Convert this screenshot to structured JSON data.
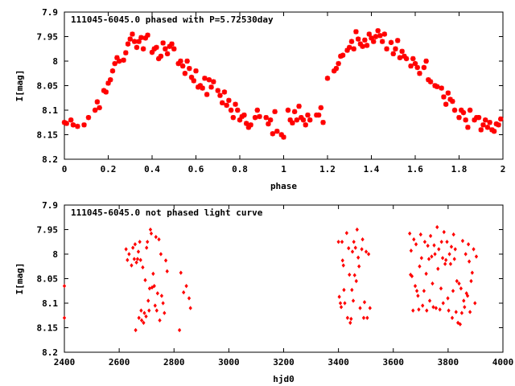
{
  "chart_data": [
    {
      "type": "scatter",
      "title": "111045-6045.0 phased with P=5.72530day",
      "xlabel": "phase",
      "ylabel": "I[mag]",
      "xlim": [
        0,
        2
      ],
      "ylim": [
        8.2,
        7.9
      ],
      "y_inverted": true,
      "xticks": [
        "0",
        "0.2",
        "0.4",
        "0.6",
        "0.8",
        "1",
        "1.2",
        "1.4",
        "1.6",
        "1.8",
        "2"
      ],
      "yticks": [
        "7.9",
        "7.95",
        "8",
        "8.05",
        "8.1",
        "8.15",
        "8.2"
      ],
      "marker": "star",
      "color": "#ff0000",
      "points": [
        [
          0.0,
          8.125
        ],
        [
          0.01,
          8.127
        ],
        [
          0.03,
          8.12
        ],
        [
          0.04,
          8.13
        ],
        [
          0.06,
          8.133
        ],
        [
          0.09,
          8.13
        ],
        [
          0.11,
          8.115
        ],
        [
          0.14,
          8.1
        ],
        [
          0.15,
          8.083
        ],
        [
          0.16,
          8.095
        ],
        [
          0.18,
          8.06
        ],
        [
          0.19,
          8.063
        ],
        [
          0.2,
          8.045
        ],
        [
          0.21,
          8.038
        ],
        [
          0.22,
          8.02
        ],
        [
          0.23,
          8.005
        ],
        [
          0.24,
          7.993
        ],
        [
          0.25,
          8.0
        ],
        [
          0.27,
          7.998
        ],
        [
          0.28,
          7.983
        ],
        [
          0.29,
          7.965
        ],
        [
          0.3,
          7.955
        ],
        [
          0.31,
          7.945
        ],
        [
          0.32,
          7.96
        ],
        [
          0.33,
          7.972
        ],
        [
          0.34,
          7.96
        ],
        [
          0.35,
          7.952
        ],
        [
          0.36,
          7.975
        ],
        [
          0.37,
          7.953
        ],
        [
          0.38,
          7.947
        ],
        [
          0.4,
          7.982
        ],
        [
          0.41,
          7.975
        ],
        [
          0.42,
          7.972
        ],
        [
          0.43,
          7.995
        ],
        [
          0.44,
          7.99
        ],
        [
          0.45,
          7.963
        ],
        [
          0.46,
          7.975
        ],
        [
          0.47,
          7.985
        ],
        [
          0.48,
          7.97
        ],
        [
          0.49,
          7.965
        ],
        [
          0.5,
          7.975
        ],
        [
          0.52,
          8.005
        ],
        [
          0.53,
          8.0
        ],
        [
          0.54,
          8.01
        ],
        [
          0.55,
          8.025
        ],
        [
          0.56,
          8.0
        ],
        [
          0.57,
          8.015
        ],
        [
          0.58,
          8.033
        ],
        [
          0.59,
          8.04
        ],
        [
          0.6,
          8.02
        ],
        [
          0.61,
          8.053
        ],
        [
          0.62,
          8.05
        ],
        [
          0.63,
          8.055
        ],
        [
          0.64,
          8.035
        ],
        [
          0.65,
          8.068
        ],
        [
          0.66,
          8.038
        ],
        [
          0.67,
          8.053
        ],
        [
          0.68,
          8.042
        ],
        [
          0.7,
          8.06
        ],
        [
          0.71,
          8.07
        ],
        [
          0.72,
          8.085
        ],
        [
          0.73,
          8.063
        ],
        [
          0.74,
          8.09
        ],
        [
          0.75,
          8.08
        ],
        [
          0.76,
          8.1
        ],
        [
          0.77,
          8.115
        ],
        [
          0.78,
          8.088
        ],
        [
          0.79,
          8.1
        ],
        [
          0.8,
          8.12
        ],
        [
          0.81,
          8.113
        ],
        [
          0.82,
          8.11
        ],
        [
          0.83,
          8.127
        ],
        [
          0.84,
          8.135
        ],
        [
          0.85,
          8.13
        ],
        [
          0.87,
          8.115
        ],
        [
          0.88,
          8.1
        ],
        [
          0.89,
          8.113
        ],
        [
          0.92,
          8.115
        ],
        [
          0.93,
          8.128
        ],
        [
          0.94,
          8.12
        ],
        [
          0.95,
          8.148
        ],
        [
          0.96,
          8.103
        ],
        [
          0.97,
          8.143
        ],
        [
          0.99,
          8.15
        ],
        [
          1.0,
          8.155
        ],
        [
          1.02,
          8.1
        ],
        [
          1.03,
          8.12
        ],
        [
          1.04,
          8.126
        ],
        [
          1.05,
          8.103
        ],
        [
          1.06,
          8.12
        ],
        [
          1.07,
          8.092
        ],
        [
          1.08,
          8.115
        ],
        [
          1.09,
          8.12
        ],
        [
          1.1,
          8.13
        ],
        [
          1.11,
          8.11
        ],
        [
          1.12,
          8.12
        ],
        [
          1.15,
          8.11
        ],
        [
          1.16,
          8.11
        ],
        [
          1.17,
          8.095
        ],
        [
          1.18,
          8.125
        ],
        [
          1.2,
          8.035
        ],
        [
          1.23,
          8.02
        ],
        [
          1.24,
          8.015
        ],
        [
          1.25,
          8.005
        ],
        [
          1.26,
          7.99
        ],
        [
          1.27,
          7.988
        ],
        [
          1.29,
          7.978
        ],
        [
          1.3,
          7.972
        ],
        [
          1.31,
          7.96
        ],
        [
          1.32,
          7.975
        ],
        [
          1.33,
          7.94
        ],
        [
          1.34,
          7.955
        ],
        [
          1.35,
          7.965
        ],
        [
          1.36,
          7.97
        ],
        [
          1.37,
          7.957
        ],
        [
          1.38,
          7.968
        ],
        [
          1.39,
          7.945
        ],
        [
          1.4,
          7.953
        ],
        [
          1.41,
          7.96
        ],
        [
          1.42,
          7.95
        ],
        [
          1.43,
          7.938
        ],
        [
          1.44,
          7.948
        ],
        [
          1.45,
          7.96
        ],
        [
          1.46,
          7.945
        ],
        [
          1.47,
          7.975
        ],
        [
          1.49,
          7.962
        ],
        [
          1.5,
          7.985
        ],
        [
          1.51,
          7.975
        ],
        [
          1.52,
          7.958
        ],
        [
          1.53,
          7.993
        ],
        [
          1.54,
          7.98
        ],
        [
          1.55,
          7.99
        ],
        [
          1.56,
          7.995
        ],
        [
          1.58,
          8.01
        ],
        [
          1.59,
          7.995
        ],
        [
          1.6,
          8.005
        ],
        [
          1.61,
          8.013
        ],
        [
          1.62,
          8.025
        ],
        [
          1.64,
          8.013
        ],
        [
          1.65,
          8.0
        ],
        [
          1.66,
          8.038
        ],
        [
          1.67,
          8.042
        ],
        [
          1.69,
          8.05
        ],
        [
          1.7,
          8.052
        ],
        [
          1.72,
          8.055
        ],
        [
          1.73,
          8.073
        ],
        [
          1.74,
          8.088
        ],
        [
          1.75,
          8.065
        ],
        [
          1.76,
          8.078
        ],
        [
          1.77,
          8.082
        ],
        [
          1.78,
          8.1
        ],
        [
          1.8,
          8.115
        ],
        [
          1.81,
          8.1
        ],
        [
          1.82,
          8.105
        ],
        [
          1.83,
          8.12
        ],
        [
          1.84,
          8.135
        ],
        [
          1.85,
          8.1
        ],
        [
          1.87,
          8.12
        ],
        [
          1.88,
          8.115
        ],
        [
          1.89,
          8.115
        ],
        [
          1.9,
          8.14
        ],
        [
          1.91,
          8.13
        ],
        [
          1.92,
          8.12
        ],
        [
          1.93,
          8.135
        ],
        [
          1.94,
          8.125
        ],
        [
          1.95,
          8.14
        ],
        [
          1.96,
          8.143
        ],
        [
          1.97,
          8.128
        ],
        [
          1.98,
          8.13
        ],
        [
          1.99,
          8.118
        ]
      ]
    },
    {
      "type": "scatter",
      "title": "111045-6045.0 not phased light curve",
      "xlabel": "hjd0",
      "ylabel": "I[mag]",
      "xlim": [
        2400,
        4000
      ],
      "ylim": [
        8.2,
        7.9
      ],
      "y_inverted": true,
      "xticks": [
        "2400",
        "2600",
        "2800",
        "3000",
        "3200",
        "3400",
        "3600",
        "3800",
        "4000"
      ],
      "yticks": [
        "7.9",
        "7.95",
        "8",
        "8.05",
        "8.1",
        "8.15",
        "8.2"
      ],
      "marker": "diamond",
      "color": "#ff0000",
      "points": [
        [
          2400,
          8.065
        ],
        [
          2400,
          8.13
        ],
        [
          2625,
          7.99
        ],
        [
          2630,
          8.012
        ],
        [
          2636,
          8.0
        ],
        [
          2645,
          8.023
        ],
        [
          2650,
          7.987
        ],
        [
          2655,
          8.01
        ],
        [
          2658,
          7.98
        ],
        [
          2660,
          8.155
        ],
        [
          2663,
          8.017
        ],
        [
          2667,
          8.01
        ],
        [
          2670,
          7.995
        ],
        [
          2672,
          8.13
        ],
        [
          2675,
          7.975
        ],
        [
          2678,
          8.012
        ],
        [
          2680,
          8.115
        ],
        [
          2682,
          8.135
        ],
        [
          2686,
          8.027
        ],
        [
          2689,
          8.14
        ],
        [
          2692,
          8.12
        ],
        [
          2695,
          8.053
        ],
        [
          2698,
          8.127
        ],
        [
          2700,
          7.987
        ],
        [
          2703,
          7.975
        ],
        [
          2706,
          8.095
        ],
        [
          2709,
          8.115
        ],
        [
          2711,
          8.07
        ],
        [
          2714,
          7.95
        ],
        [
          2717,
          7.958
        ],
        [
          2720,
          8.068
        ],
        [
          2724,
          8.04
        ],
        [
          2728,
          8.065
        ],
        [
          2731,
          8.105
        ],
        [
          2734,
          7.965
        ],
        [
          2737,
          8.115
        ],
        [
          2740,
          8.08
        ],
        [
          2745,
          7.97
        ],
        [
          2748,
          8.135
        ],
        [
          2752,
          8.0
        ],
        [
          2755,
          8.085
        ],
        [
          2760,
          8.1
        ],
        [
          2765,
          8.12
        ],
        [
          2770,
          8.013
        ],
        [
          2775,
          8.035
        ],
        [
          2820,
          8.155
        ],
        [
          2825,
          8.038
        ],
        [
          2835,
          8.078
        ],
        [
          2845,
          8.065
        ],
        [
          2855,
          8.09
        ],
        [
          2860,
          8.11
        ],
        [
          3400,
          7.975
        ],
        [
          3403,
          8.087
        ],
        [
          3407,
          8.1
        ],
        [
          3410,
          8.108
        ],
        [
          3413,
          7.975
        ],
        [
          3415,
          8.013
        ],
        [
          3418,
          8.023
        ],
        [
          3420,
          8.073
        ],
        [
          3423,
          8.1
        ],
        [
          3430,
          7.957
        ],
        [
          3433,
          8.13
        ],
        [
          3437,
          7.988
        ],
        [
          3440,
          8.042
        ],
        [
          3443,
          8.14
        ],
        [
          3446,
          8.132
        ],
        [
          3449,
          8.073
        ],
        [
          3451,
          7.995
        ],
        [
          3454,
          8.095
        ],
        [
          3456,
          7.975
        ],
        [
          3459,
          8.043
        ],
        [
          3462,
          7.987
        ],
        [
          3465,
          8.055
        ],
        [
          3468,
          7.95
        ],
        [
          3472,
          8.007
        ],
        [
          3475,
          8.025
        ],
        [
          3479,
          8.11
        ],
        [
          3485,
          7.99
        ],
        [
          3488,
          7.97
        ],
        [
          3492,
          8.13
        ],
        [
          3495,
          8.098
        ],
        [
          3501,
          7.995
        ],
        [
          3505,
          8.13
        ],
        [
          3510,
          8.0
        ],
        [
          3515,
          8.11
        ],
        [
          3660,
          7.958
        ],
        [
          3663,
          8.042
        ],
        [
          3665,
          7.993
        ],
        [
          3668,
          8.045
        ],
        [
          3672,
          8.115
        ],
        [
          3675,
          7.97
        ],
        [
          3680,
          8.065
        ],
        [
          3683,
          7.98
        ],
        [
          3686,
          8.075
        ],
        [
          3690,
          8.085
        ],
        [
          3693,
          8.113
        ],
        [
          3696,
          8.025
        ],
        [
          3700,
          7.96
        ],
        [
          3703,
          8.008
        ],
        [
          3707,
          8.105
        ],
        [
          3712,
          8.075
        ],
        [
          3715,
          7.975
        ],
        [
          3720,
          8.04
        ],
        [
          3722,
          8.115
        ],
        [
          3726,
          7.983
        ],
        [
          3730,
          8.01
        ],
        [
          3733,
          8.095
        ],
        [
          3736,
          7.963
        ],
        [
          3740,
          8.005
        ],
        [
          3743,
          8.06
        ],
        [
          3746,
          8.108
        ],
        [
          3749,
          7.982
        ],
        [
          3752,
          8.0
        ],
        [
          3756,
          8.11
        ],
        [
          3760,
          7.945
        ],
        [
          3763,
          8.03
        ],
        [
          3766,
          7.99
        ],
        [
          3770,
          8.113
        ],
        [
          3774,
          8.07
        ],
        [
          3776,
          7.975
        ],
        [
          3780,
          8.008
        ],
        [
          3782,
          8.1
        ],
        [
          3785,
          7.955
        ],
        [
          3789,
          8.02
        ],
        [
          3792,
          8.012
        ],
        [
          3796,
          7.975
        ],
        [
          3799,
          8.09
        ],
        [
          3802,
          8.115
        ],
        [
          3805,
          8.0
        ],
        [
          3809,
          8.02
        ],
        [
          3812,
          7.985
        ],
        [
          3815,
          8.13
        ],
        [
          3818,
          8.075
        ],
        [
          3820,
          7.96
        ],
        [
          3823,
          8.01
        ],
        [
          3826,
          7.99
        ],
        [
          3829,
          8.118
        ],
        [
          3832,
          8.055
        ],
        [
          3836,
          8.14
        ],
        [
          3840,
          8.06
        ],
        [
          3844,
          8.143
        ],
        [
          3847,
          8.07
        ],
        [
          3850,
          8.12
        ],
        [
          3853,
          7.973
        ],
        [
          3857,
          8.095
        ],
        [
          3860,
          8.108
        ],
        [
          3864,
          8.0
        ],
        [
          3867,
          8.08
        ],
        [
          3871,
          8.085
        ],
        [
          3874,
          7.98
        ],
        [
          3877,
          8.015
        ],
        [
          3880,
          8.118
        ],
        [
          3884,
          8.055
        ],
        [
          3888,
          8.038
        ],
        [
          3893,
          7.99
        ],
        [
          3898,
          8.1
        ],
        [
          3903,
          8.005
        ]
      ]
    }
  ]
}
